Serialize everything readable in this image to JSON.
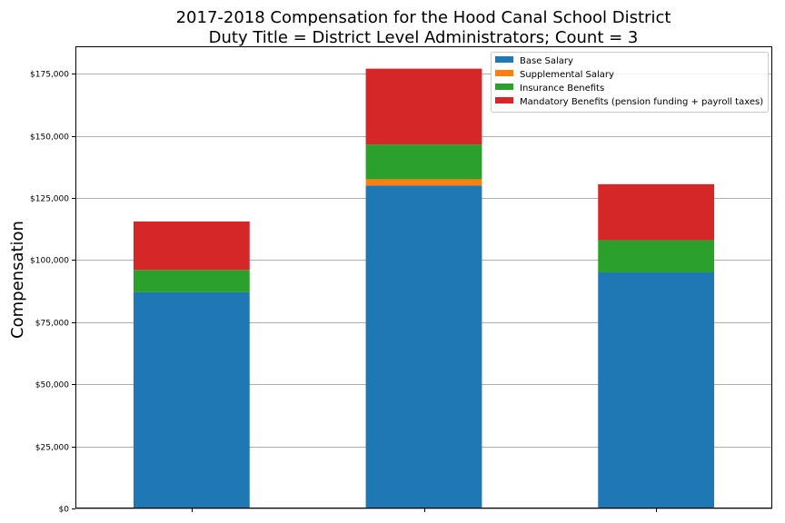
{
  "chart_data": {
    "type": "bar",
    "stacked": true,
    "title": "2017-2018 Compensation for the Hood Canal School District",
    "subtitle": "Duty Title = District Level Administrators; Count = 3",
    "xlabel": "",
    "ylabel": "Compensation",
    "ylim": [
      0,
      186000
    ],
    "yticks": [
      0,
      25000,
      50000,
      75000,
      100000,
      125000,
      150000,
      175000
    ],
    "ytick_labels": [
      "$0",
      "$25,000",
      "$50,000",
      "$75,000",
      "$100,000",
      "$125,000",
      "$150,000",
      "$175,000"
    ],
    "categories": [
      "",
      "",
      ""
    ],
    "grid": "horizontal",
    "legend_position": "top-right",
    "series": [
      {
        "name": "Base Salary",
        "color": "#1f77b4",
        "values": [
          87000,
          130000,
          95000
        ]
      },
      {
        "name": "Supplemental Salary",
        "color": "#ff7f0e",
        "values": [
          0,
          2500,
          0
        ]
      },
      {
        "name": "Insurance Benefits",
        "color": "#2ca02c",
        "values": [
          9000,
          14000,
          13000
        ]
      },
      {
        "name": "Mandatory Benefits (pension funding + payroll taxes)",
        "color": "#d62728",
        "values": [
          19500,
          30500,
          22500
        ]
      }
    ]
  }
}
